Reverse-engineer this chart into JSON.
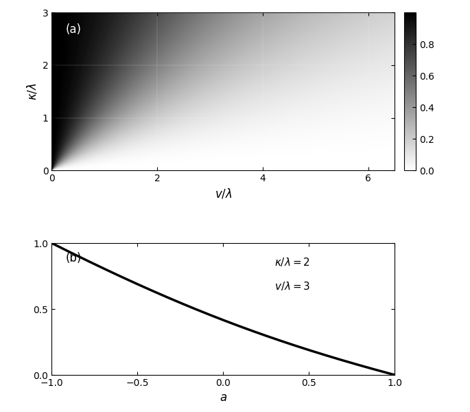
{
  "v_max": 6.5,
  "kappa_max": 3.0,
  "v_ticks": [
    0,
    2,
    4,
    6
  ],
  "kappa_ticks": [
    0,
    1,
    2,
    3
  ],
  "colorbar_ticks": [
    0,
    0.2,
    0.4,
    0.6,
    0.8
  ],
  "xlabel_a": "$v/\\lambda$",
  "ylabel_a": "$\\kappa/\\lambda$",
  "xlabel_b": "$a$",
  "label_a": "(a)",
  "label_b": "(b)",
  "annotation_b_line1": "$\\kappa/\\lambda=2$",
  "annotation_b_line2": "$v/\\lambda=3$",
  "kappa_fixed": 2.0,
  "v_fixed": 3.0,
  "a_min": -1.0,
  "a_max": 1.0,
  "a_ticks": [
    -1,
    -0.5,
    0,
    0.5,
    1
  ],
  "ylim_b": [
    0,
    1
  ],
  "yticks_b": [
    0,
    0.5,
    1
  ],
  "line_color": "#000000",
  "line_width": 2.5,
  "background_color": "#ffffff",
  "cmap": "gray_r",
  "grid_alpha": 0.4,
  "figsize": [
    6.85,
    6.0
  ],
  "dpi": 100
}
